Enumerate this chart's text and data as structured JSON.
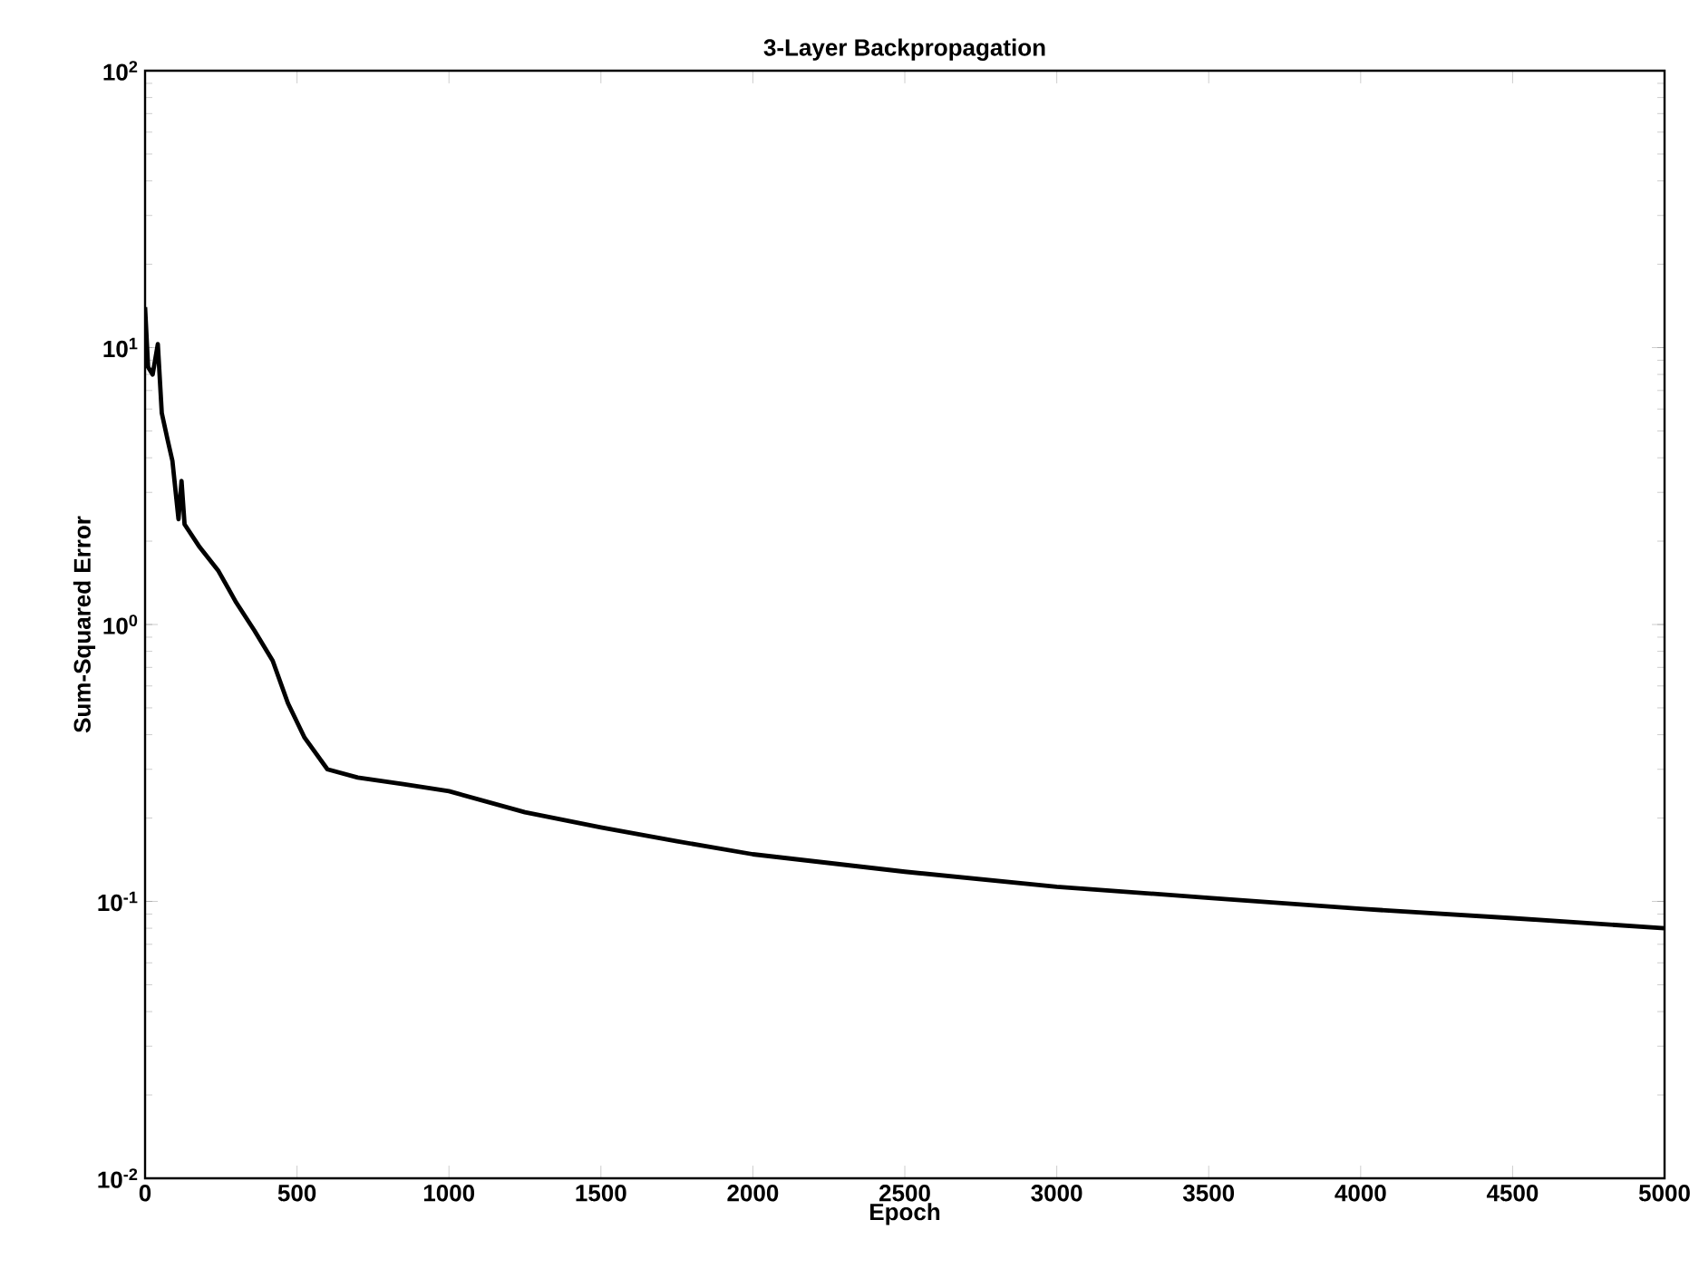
{
  "chart_data": {
    "type": "line",
    "title": "3-Layer Backpropagation",
    "xlabel": "Epoch",
    "ylabel": "Sum-Squared Error",
    "log": "y",
    "grid": false,
    "marker": "none",
    "line_style": "solid",
    "xlim": [
      0,
      5000
    ],
    "ylim": [
      0.01,
      100
    ],
    "xticks": [
      0,
      500,
      1000,
      1500,
      2000,
      2500,
      3000,
      3500,
      4000,
      4500,
      5000
    ],
    "yticks": [
      {
        "value": 0.01,
        "label": "10$^{-2}$"
      },
      {
        "value": 0.1,
        "label": "10$^{-1}$"
      },
      {
        "value": 1,
        "label": "10$^{0}$"
      },
      {
        "value": 10,
        "label": "10$^{1}$"
      },
      {
        "value": 100,
        "label": "10$^{2}$"
      }
    ],
    "series": [
      {
        "color": "#000000",
        "x": [
          0,
          10,
          25,
          42,
          55,
          75,
          90,
          110,
          120,
          130,
          180,
          240,
          300,
          360,
          420,
          470,
          525,
          600,
          700,
          850,
          1000,
          1250,
          1500,
          1750,
          2000,
          2500,
          3000,
          3500,
          4000,
          4500,
          5000
        ],
        "values": [
          14,
          8.5,
          8,
          10.3,
          5.8,
          4.6,
          3.9,
          2.4,
          3.3,
          2.3,
          1.9,
          1.57,
          1.2,
          0.95,
          0.74,
          0.52,
          0.39,
          0.3,
          0.28,
          0.265,
          0.25,
          0.21,
          0.185,
          0.165,
          0.148,
          0.128,
          0.113,
          0.103,
          0.094,
          0.087,
          0.08
        ]
      }
    ]
  }
}
